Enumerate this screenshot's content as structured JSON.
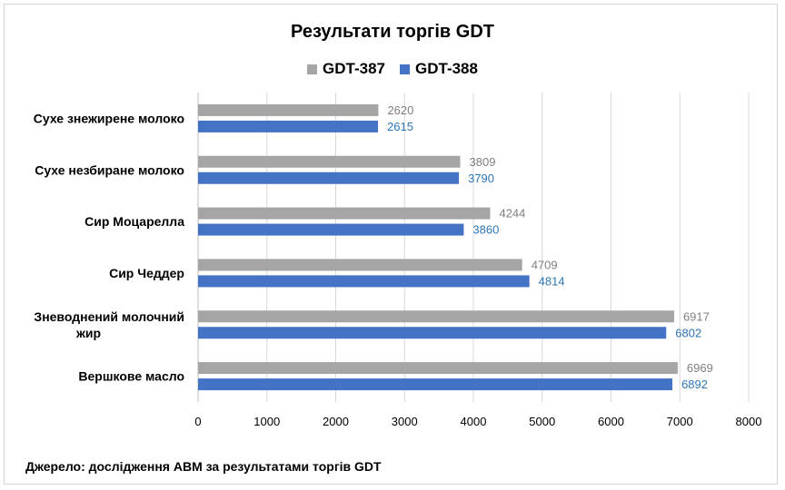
{
  "chart_data": {
    "type": "bar",
    "orientation": "horizontal",
    "title": "Результати торгів GDT",
    "categories": [
      "Сухе знежирене молоко",
      "Сухе незбиране молоко",
      "Сир Моцарелла",
      "Сир Чеддер",
      "Зневоднений молочний жир",
      "Вершкове масло"
    ],
    "series": [
      {
        "name": "GDT-387",
        "color": "#a5a5a5",
        "label_color": "#7f7f7f",
        "values": [
          2620,
          3809,
          4244,
          4709,
          6917,
          6969
        ]
      },
      {
        "name": "GDT-388",
        "color": "#4472c4",
        "label_color": "#2e75b6",
        "values": [
          2615,
          3790,
          3860,
          4814,
          6802,
          6892
        ]
      }
    ],
    "xlim": [
      0,
      8000
    ],
    "xticks": [
      0,
      1000,
      2000,
      3000,
      4000,
      5000,
      6000,
      7000,
      8000
    ],
    "grid": true,
    "legend_position": "top"
  },
  "source_text": "Джерело: дослідження АВМ за результатами торгів GDT"
}
